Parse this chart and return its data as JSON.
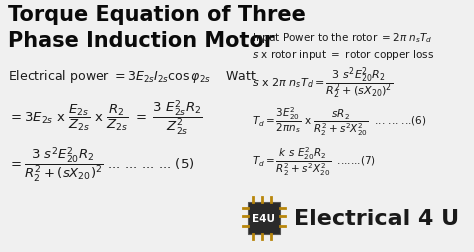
{
  "bg_color": "#f0f0f0",
  "title_line1": "Torque Equation of Three",
  "title_line2": "Phase Induction Motor",
  "title_color": "#0a0a0a",
  "title_fontsize": 15,
  "left_eq1": "Electrical power $= 3E_{2s}I_{2s}\\cos\\varphi_{2s}$    Watt",
  "left_eq2": "$= 3E_{2s}$ x $\\dfrac{E_{2s}}{Z_{2s}}$ x $\\dfrac{R_2}{Z_{2s}}$ $=$ $\\dfrac{3\\ E_{2s}^2 R_2}{Z_{2s}^2}$",
  "left_eq3": "$= \\dfrac{3\\ s^2 E_{20}^2 R_2}{R_2^2 + (sX_{20})^2}$ ... ... ... ... (5)",
  "right_line1": "Input Power to the rotor $= 2\\pi\\ n_s T_d$",
  "right_line2": "$s$ x rotor input $=$ rotor copper loss",
  "right_eq1": "$s$ x $2\\pi\\ n_s T_d = \\dfrac{3\\ s^2 E_{20}^2 R_2}{R_2^2 + (sX_{20})^2}$",
  "right_eq2": "$T_d = \\dfrac{3E_{20}^2}{2\\pi n_s}$ x $\\dfrac{sR_2}{R_2^2 + s^2 X_{20}^2}$  ... ... ...(6)",
  "right_eq3": "$T_d = \\dfrac{k\\ s\\ E_{20}^2 R_2}{R_2^2 + s^2 X_{20}^2}$  .......(7)",
  "logo_text": "E4U",
  "brand_text": "Electrical 4 U",
  "text_color": "#1a1a1a",
  "eq_fontsize": 9,
  "small_fontsize": 7.5,
  "brand_fontsize": 16,
  "chip_body_color": "#2a2a2a",
  "chip_pin_color": "#b8860b",
  "chip_text_color": "#ffffff"
}
